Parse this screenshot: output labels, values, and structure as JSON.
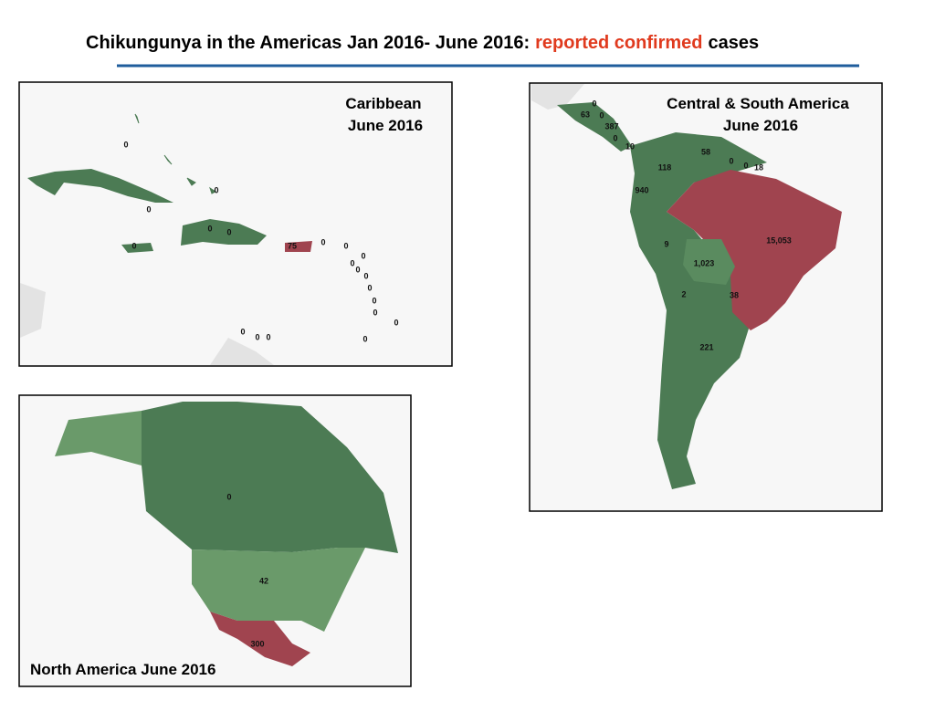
{
  "header": {
    "title": [
      "Chikungunya in the Americas Jan 2016- June 2016:",
      "reported confirmed",
      "cases"
    ]
  },
  "panels": [
    {
      "title": [
        "Caribbean",
        "June 2016"
      ],
      "labels": [
        0,
        0,
        0,
        0,
        0,
        0,
        75,
        0,
        0,
        0,
        0,
        0,
        0,
        0,
        0,
        0,
        0,
        0,
        0,
        0,
        0
      ]
    },
    {
      "title": [
        "Central & South America",
        "June 2016"
      ],
      "labels": [
        0,
        63,
        0,
        387,
        0,
        10,
        58,
        0,
        0,
        18,
        118,
        940,
        {
          "value": 15053,
          "label": "15,053"
        },
        9,
        {
          "value": 1023,
          "label": "1,023"
        },
        2,
        38,
        221
      ]
    },
    {
      "title": [
        "North America June 2016"
      ],
      "labels": [
        0,
        42,
        300
      ]
    }
  ]
}
